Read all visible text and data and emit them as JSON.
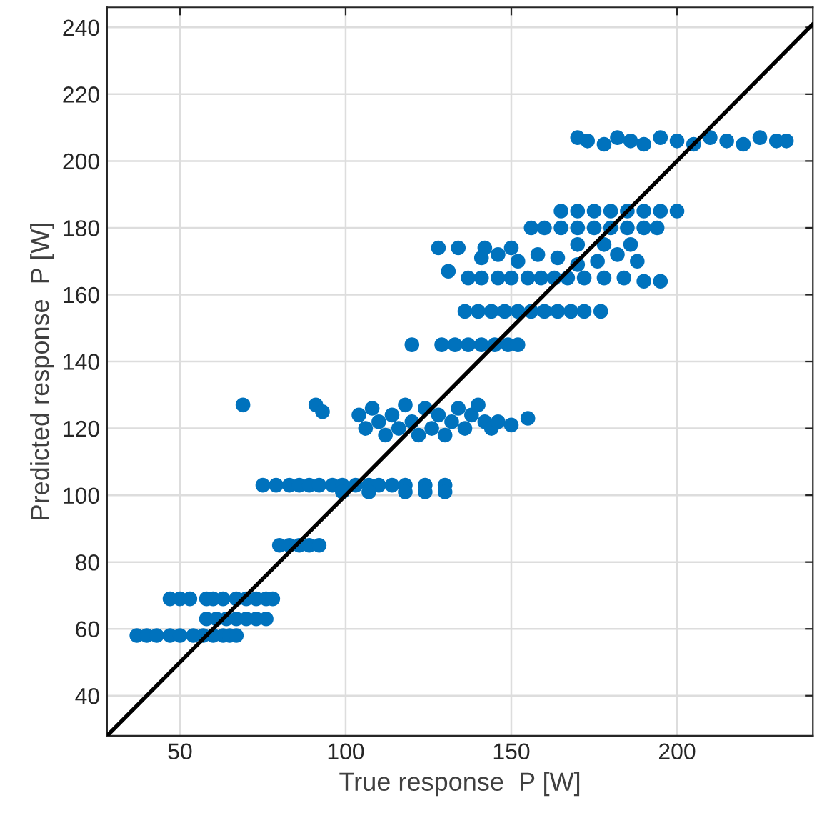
{
  "chart_data": {
    "type": "scatter",
    "xlabel": "True response  P [W]",
    "ylabel": "Predicted response  P [W]",
    "xlim": [
      28,
      241
    ],
    "ylim": [
      28,
      246
    ],
    "xticks": [
      50,
      100,
      150,
      200
    ],
    "yticks": [
      40,
      60,
      80,
      100,
      120,
      140,
      160,
      180,
      200,
      220,
      240
    ],
    "grid": true,
    "marker": "circle",
    "series": [
      {
        "color": "#0072bd",
        "x": [
          37,
          40,
          43,
          47,
          50,
          54,
          57,
          60,
          63,
          65,
          67,
          58,
          61,
          64,
          67,
          70,
          73,
          76,
          47,
          50,
          53,
          58,
          60,
          63,
          67,
          70,
          73,
          76,
          78,
          80,
          83,
          86,
          89,
          92,
          75,
          79,
          83,
          86,
          89,
          92,
          96,
          99,
          103,
          107,
          110,
          114,
          118,
          124,
          130,
          99,
          107,
          118,
          124,
          130,
          69,
          91,
          93,
          104,
          106,
          108,
          110,
          112,
          114,
          116,
          118,
          120,
          122,
          124,
          126,
          128,
          130,
          132,
          134,
          136,
          138,
          140,
          142,
          144,
          146,
          150,
          155,
          120,
          129,
          133,
          137,
          141,
          145,
          149,
          152,
          136,
          140,
          144,
          148,
          152,
          156,
          160,
          164,
          168,
          172,
          177,
          137,
          141,
          146,
          150,
          155,
          159,
          163,
          167,
          172,
          178,
          184,
          190,
          195,
          131,
          141,
          146,
          152,
          158,
          164,
          170,
          176,
          182,
          188,
          128,
          134,
          142,
          150,
          170,
          178,
          186,
          156,
          160,
          165,
          170,
          175,
          180,
          185,
          190,
          194,
          165,
          170,
          175,
          180,
          185,
          190,
          195,
          200,
          170,
          173,
          178,
          182,
          186,
          190,
          195,
          200,
          205,
          210,
          215,
          220,
          225,
          230,
          233
        ],
        "values": [
          58,
          58,
          58,
          58,
          58,
          58,
          58,
          58,
          58,
          58,
          58,
          63,
          63,
          63,
          63,
          63,
          63,
          63,
          69,
          69,
          69,
          69,
          69,
          69,
          69,
          69,
          69,
          69,
          69,
          85,
          85,
          85,
          85,
          85,
          103,
          103,
          103,
          103,
          103,
          103,
          103,
          103,
          103,
          103,
          103,
          103,
          103,
          103,
          103,
          101,
          101,
          101,
          101,
          101,
          127,
          127,
          125,
          124,
          120,
          126,
          122,
          118,
          124,
          120,
          127,
          122,
          118,
          126,
          120,
          124,
          118,
          122,
          126,
          120,
          124,
          127,
          122,
          120,
          122,
          121,
          123,
          145,
          145,
          145,
          145,
          145,
          145,
          145,
          145,
          155,
          155,
          155,
          155,
          155,
          155,
          155,
          155,
          155,
          155,
          155,
          165,
          165,
          165,
          165,
          165,
          165,
          165,
          165,
          165,
          165,
          165,
          164,
          164,
          167,
          171,
          172,
          170,
          172,
          171,
          169,
          170,
          172,
          170,
          174,
          174,
          174,
          174,
          175,
          175,
          175,
          180,
          180,
          180,
          180,
          180,
          180,
          180,
          180,
          180,
          185,
          185,
          185,
          185,
          185,
          185,
          185,
          185,
          207,
          206,
          205,
          207,
          206,
          205,
          207,
          206,
          205,
          207,
          206,
          205,
          207,
          206,
          206
        ]
      },
      {
        "type": "line",
        "color": "#000000",
        "line_style": "solid",
        "marker": "none",
        "x": [
          28,
          241
        ],
        "values": [
          28,
          241
        ]
      }
    ]
  }
}
